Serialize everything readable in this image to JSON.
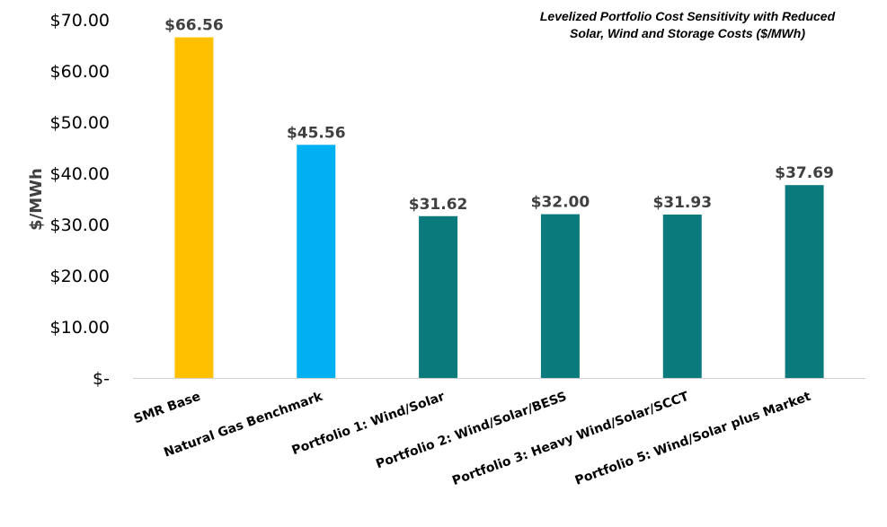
{
  "chart_data": {
    "type": "bar",
    "title_lines": [
      "Levelized Portfolio Cost Sensitivity with Reduced",
      "Solar, Wind and Storage Costs ($/MWh)"
    ],
    "ylabel": "$/MWh",
    "xlabel": "",
    "ylim": [
      0,
      70
    ],
    "yticks": [
      0,
      10,
      20,
      30,
      40,
      50,
      60,
      70
    ],
    "ytick_labels": [
      "$-",
      "$10.00",
      "$20.00",
      "$30.00",
      "$40.00",
      "$50.00",
      "$60.00",
      "$70.00"
    ],
    "categories": [
      "SMR Base",
      "Natural Gas Benchmark",
      "Portfolio 1: Wind/Solar",
      "Portfolio 2: Wind/Solar/BESS",
      "Portfolio 3: Heavy Wind/Solar/SCCT",
      "Portfolio 5: Wind/Solar plus Market"
    ],
    "values": [
      66.56,
      45.56,
      31.62,
      32.0,
      31.93,
      37.69
    ],
    "data_labels": [
      "$66.56",
      "$45.56",
      "$31.62",
      "$32.00",
      "$31.93",
      "$37.69"
    ],
    "bar_colors": [
      "#FFC000",
      "#00B0F0",
      "#0B7A7D",
      "#0B7A7D",
      "#0B7A7D",
      "#0B7A7D"
    ],
    "grid": false,
    "legend": "none"
  }
}
